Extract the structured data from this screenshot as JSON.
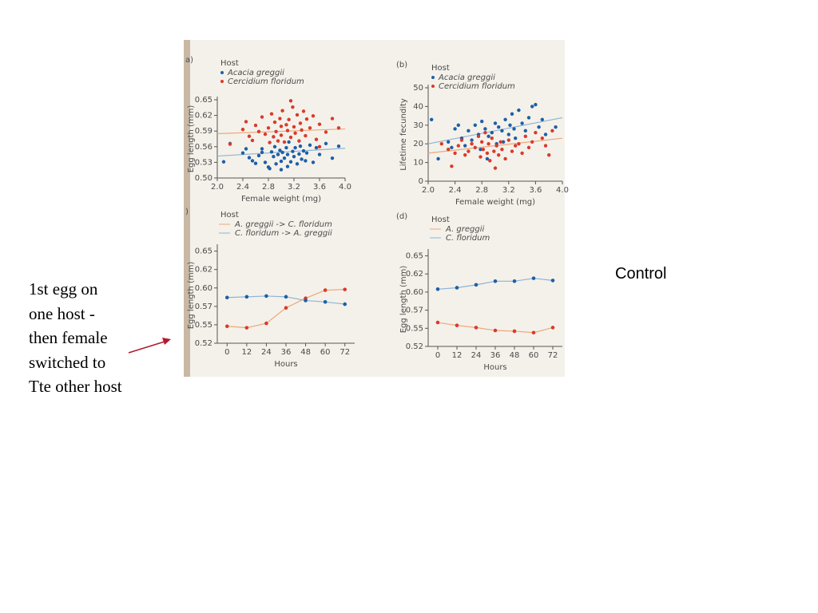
{
  "slide": {
    "caption": "1st egg on\none host -\nthen female\nswitched to\nTte other host",
    "label": "Control",
    "colors": {
      "blue": "#1c5fa8",
      "red": "#d93a2b",
      "blue_line": "#8fb3d6",
      "red_line": "#eda77c",
      "arrow": "#b01c2e"
    }
  },
  "chart_data": [
    {
      "panel": "a",
      "letter": "a)",
      "type": "scatter",
      "legend": {
        "title": "Host",
        "entries": [
          "Acacia greggii",
          "Cercidium floridum"
        ],
        "placement": "top-left"
      },
      "xlabel": "Female weight (mg)",
      "ylabel": "Egg length (mm)",
      "xlim": [
        2.0,
        4.0
      ],
      "ylim": [
        0.5,
        0.65
      ],
      "xticks": [
        "2.0",
        "2.4",
        "2.8",
        "3.2",
        "3.6",
        "4.0"
      ],
      "yticks": [
        "0.50",
        "0.53",
        "0.56",
        "0.59",
        "0.62",
        "0.65"
      ],
      "series": [
        {
          "name": "Acacia greggii",
          "color": "#1c5fa8",
          "points": [
            [
              2.1,
              0.531
            ],
            [
              2.2,
              0.566
            ],
            [
              2.4,
              0.548
            ],
            [
              2.45,
              0.556
            ],
            [
              2.5,
              0.539
            ],
            [
              2.55,
              0.533
            ],
            [
              2.6,
              0.528
            ],
            [
              2.65,
              0.543
            ],
            [
              2.7,
              0.549
            ],
            [
              2.7,
              0.556
            ],
            [
              2.75,
              0.53
            ],
            [
              2.8,
              0.521
            ],
            [
              2.82,
              0.518
            ],
            [
              2.85,
              0.55
            ],
            [
              2.88,
              0.541
            ],
            [
              2.9,
              0.56
            ],
            [
              2.92,
              0.527
            ],
            [
              2.95,
              0.545
            ],
            [
              2.98,
              0.553
            ],
            [
              3.0,
              0.516
            ],
            [
              3.0,
              0.532
            ],
            [
              3.02,
              0.549
            ],
            [
              3.05,
              0.538
            ],
            [
              3.08,
              0.558
            ],
            [
              3.1,
              0.522
            ],
            [
              3.1,
              0.545
            ],
            [
              3.12,
              0.569
            ],
            [
              3.15,
              0.531
            ],
            [
              3.18,
              0.551
            ],
            [
              3.2,
              0.541
            ],
            [
              3.22,
              0.558
            ],
            [
              3.25,
              0.527
            ],
            [
              3.28,
              0.546
            ],
            [
              3.3,
              0.561
            ],
            [
              3.32,
              0.536
            ],
            [
              3.35,
              0.552
            ],
            [
              3.38,
              0.533
            ],
            [
              3.4,
              0.548
            ],
            [
              3.45,
              0.563
            ],
            [
              3.5,
              0.53
            ],
            [
              3.55,
              0.558
            ],
            [
              3.6,
              0.545
            ],
            [
              3.7,
              0.566
            ],
            [
              3.8,
              0.538
            ],
            [
              3.9,
              0.561
            ]
          ],
          "trend": [
            [
              2.0,
              0.542
            ],
            [
              4.0,
              0.557
            ]
          ]
        },
        {
          "name": "Cercidium floridum",
          "color": "#d93a2b",
          "points": [
            [
              2.2,
              0.565
            ],
            [
              2.4,
              0.593
            ],
            [
              2.45,
              0.608
            ],
            [
              2.5,
              0.58
            ],
            [
              2.55,
              0.572
            ],
            [
              2.6,
              0.601
            ],
            [
              2.65,
              0.589
            ],
            [
              2.7,
              0.617
            ],
            [
              2.75,
              0.584
            ],
            [
              2.8,
              0.596
            ],
            [
              2.82,
              0.568
            ],
            [
              2.85,
              0.623
            ],
            [
              2.88,
              0.579
            ],
            [
              2.9,
              0.607
            ],
            [
              2.92,
              0.589
            ],
            [
              2.95,
              0.571
            ],
            [
              2.98,
              0.614
            ],
            [
              3.0,
              0.599
            ],
            [
              3.0,
              0.582
            ],
            [
              3.02,
              0.629
            ],
            [
              3.05,
              0.569
            ],
            [
              3.08,
              0.602
            ],
            [
              3.1,
              0.591
            ],
            [
              3.12,
              0.612
            ],
            [
              3.15,
              0.578
            ],
            [
              3.18,
              0.636
            ],
            [
              3.2,
              0.598
            ],
            [
              3.22,
              0.586
            ],
            [
              3.25,
              0.621
            ],
            [
              3.28,
              0.571
            ],
            [
              3.3,
              0.605
            ],
            [
              3.32,
              0.592
            ],
            [
              3.35,
              0.628
            ],
            [
              3.38,
              0.581
            ],
            [
              3.4,
              0.613
            ],
            [
              3.45,
              0.596
            ],
            [
              3.5,
              0.619
            ],
            [
              3.55,
              0.574
            ],
            [
              3.6,
              0.603
            ],
            [
              3.7,
              0.588
            ],
            [
              3.8,
              0.614
            ],
            [
              3.9,
              0.596
            ],
            [
              3.15,
              0.648
            ],
            [
              3.6,
              0.56
            ]
          ],
          "trend": [
            [
              2.0,
              0.585
            ],
            [
              4.0,
              0.594
            ]
          ]
        }
      ]
    },
    {
      "panel": "b",
      "letter": "(b)",
      "type": "scatter",
      "legend": {
        "title": "Host",
        "entries": [
          "Acacia greggii",
          "Cercidium floridum"
        ],
        "placement": "top-left"
      },
      "xlabel": "Female weight (mg)",
      "ylabel": "Lifetime fecundity",
      "xlim": [
        2.0,
        4.0
      ],
      "ylim": [
        0,
        50
      ],
      "xticks": [
        "2.0",
        "2.4",
        "2.8",
        "3.2",
        "3.6",
        "4.0"
      ],
      "yticks": [
        "0",
        "10",
        "20",
        "30",
        "40",
        "50"
      ],
      "series": [
        {
          "name": "Acacia greggii",
          "color": "#1c5fa8",
          "points": [
            [
              2.05,
              33
            ],
            [
              2.15,
              12
            ],
            [
              2.3,
              21
            ],
            [
              2.35,
              18
            ],
            [
              2.4,
              28
            ],
            [
              2.45,
              30
            ],
            [
              2.5,
              23
            ],
            [
              2.55,
              19
            ],
            [
              2.6,
              27
            ],
            [
              2.65,
              22
            ],
            [
              2.7,
              30
            ],
            [
              2.75,
              25
            ],
            [
              2.78,
              17
            ],
            [
              2.8,
              32
            ],
            [
              2.85,
              28
            ],
            [
              2.88,
              12
            ],
            [
              2.9,
              24
            ],
            [
              2.95,
              26
            ],
            [
              3.0,
              31
            ],
            [
              3.02,
              20
            ],
            [
              3.05,
              29
            ],
            [
              3.1,
              27
            ],
            [
              3.12,
              21
            ],
            [
              3.15,
              33
            ],
            [
              3.2,
              25
            ],
            [
              3.22,
              30
            ],
            [
              3.25,
              36
            ],
            [
              3.28,
              28
            ],
            [
              3.3,
              23
            ],
            [
              3.35,
              38
            ],
            [
              3.4,
              31
            ],
            [
              3.45,
              27
            ],
            [
              3.5,
              34
            ],
            [
              3.55,
              40
            ],
            [
              3.6,
              41
            ],
            [
              3.65,
              29
            ],
            [
              3.7,
              33
            ],
            [
              3.75,
              25
            ],
            [
              3.9,
              29
            ]
          ],
          "trend": [
            [
              2.0,
              20
            ],
            [
              4.0,
              34
            ]
          ]
        },
        {
          "name": "Cercidium floridum",
          "color": "#d93a2b",
          "points": [
            [
              2.2,
              20
            ],
            [
              2.3,
              17
            ],
            [
              2.35,
              8
            ],
            [
              2.4,
              15
            ],
            [
              2.45,
              19
            ],
            [
              2.5,
              22
            ],
            [
              2.55,
              14
            ],
            [
              2.6,
              16
            ],
            [
              2.65,
              20
            ],
            [
              2.7,
              18
            ],
            [
              2.75,
              24
            ],
            [
              2.78,
              13
            ],
            [
              2.8,
              21
            ],
            [
              2.82,
              17
            ],
            [
              2.85,
              26
            ],
            [
              2.88,
              15
            ],
            [
              2.9,
              20
            ],
            [
              2.92,
              11
            ],
            [
              2.95,
              23
            ],
            [
              2.98,
              16
            ],
            [
              3.0,
              7
            ],
            [
              3.02,
              19
            ],
            [
              3.05,
              14
            ],
            [
              3.08,
              21
            ],
            [
              3.1,
              17
            ],
            [
              3.15,
              12
            ],
            [
              3.2,
              22
            ],
            [
              3.25,
              16
            ],
            [
              3.3,
              19
            ],
            [
              3.35,
              20
            ],
            [
              3.4,
              15
            ],
            [
              3.45,
              24
            ],
            [
              3.5,
              18
            ],
            [
              3.55,
              21
            ],
            [
              3.6,
              26
            ],
            [
              3.7,
              23
            ],
            [
              3.75,
              19
            ],
            [
              3.8,
              14
            ],
            [
              3.85,
              27
            ]
          ],
          "trend": [
            [
              2.0,
              15
            ],
            [
              4.0,
              23
            ]
          ]
        }
      ]
    },
    {
      "panel": "c",
      "letter": ")",
      "type": "line",
      "legend": {
        "title": "Host",
        "entries": [
          "A. greggii -> C. floridum",
          "C. floridum -> A. greggii"
        ],
        "placement": "top-left"
      },
      "xlabel": "Hours",
      "ylabel": "Egg length (mm)",
      "xlim": [
        -6,
        78
      ],
      "ylim": [
        0.52,
        0.65
      ],
      "x": [
        0,
        12,
        24,
        36,
        48,
        60,
        72
      ],
      "xticks": [
        "0",
        "12",
        "24",
        "36",
        "48",
        "60",
        "72"
      ],
      "yticks": [
        "0.52",
        "0.55",
        "0.57",
        "0.60",
        "0.62",
        "0.65"
      ],
      "ytick_values": [
        0.52,
        0.545,
        0.57,
        0.595,
        0.62,
        0.645
      ],
      "series": [
        {
          "name": "A. greggii -> C. floridum",
          "color": "#d93a2b",
          "line": "#eda77c",
          "values": [
            0.543,
            0.541,
            0.547,
            0.568,
            0.581,
            0.592,
            0.593
          ]
        },
        {
          "name": "C. floridum -> A. greggii",
          "color": "#1c5fa8",
          "line": "#8fb3d6",
          "values": [
            0.582,
            0.583,
            0.584,
            0.583,
            0.578,
            0.576,
            0.573
          ]
        }
      ]
    },
    {
      "panel": "d",
      "letter": "(d)",
      "type": "line",
      "legend": {
        "title": "Host",
        "entries": [
          "A. greggii",
          "C. floridum"
        ],
        "placement": "top-left"
      },
      "xlabel": "Hours",
      "ylabel": "Egg length (mm)",
      "xlim": [
        -6,
        78
      ],
      "ylim": [
        0.52,
        0.65
      ],
      "x": [
        0,
        12,
        24,
        36,
        48,
        60,
        72
      ],
      "xticks": [
        "0",
        "12",
        "24",
        "36",
        "48",
        "60",
        "72"
      ],
      "yticks": [
        "0.52",
        "0.55",
        "0.57",
        "0.60",
        "0.62",
        "0.65"
      ],
      "ytick_values": [
        0.52,
        0.545,
        0.57,
        0.595,
        0.62,
        0.645
      ],
      "series": [
        {
          "name": "A. greggii",
          "color": "#d93a2b",
          "line": "#eda77c",
          "values": [
            0.553,
            0.549,
            0.546,
            0.542,
            0.541,
            0.539,
            0.546
          ]
        },
        {
          "name": "C. floridum",
          "color": "#1c5fa8",
          "line": "#8fb3d6",
          "values": [
            0.599,
            0.601,
            0.605,
            0.61,
            0.61,
            0.614,
            0.611
          ]
        }
      ]
    }
  ]
}
